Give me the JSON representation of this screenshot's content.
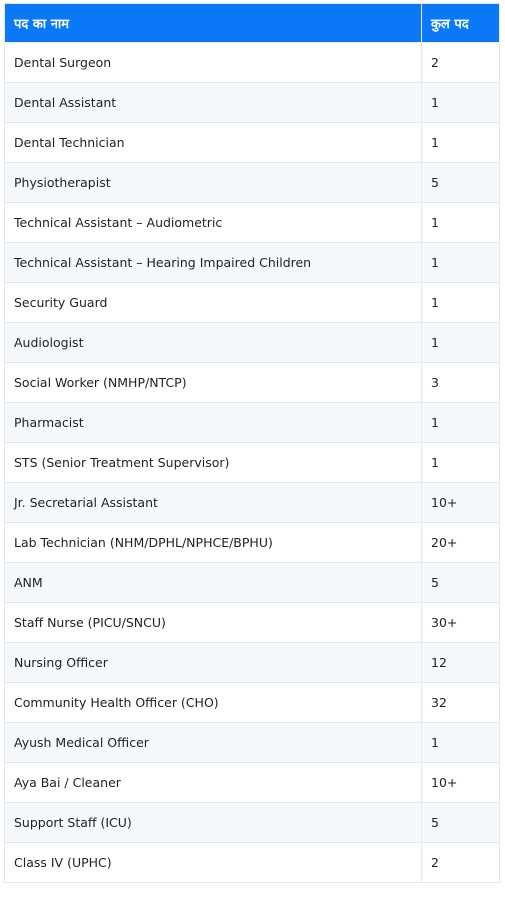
{
  "table": {
    "headers": [
      "पद का नाम",
      "कुल पद"
    ],
    "rows": [
      [
        "Dental Surgeon",
        "2"
      ],
      [
        "Dental Assistant",
        "1"
      ],
      [
        "Dental Technician",
        "1"
      ],
      [
        "Physiotherapist",
        "5"
      ],
      [
        "Technical Assistant – Audiometric",
        "1"
      ],
      [
        "Technical Assistant – Hearing Impaired Children",
        "1"
      ],
      [
        "Security Guard",
        "1"
      ],
      [
        "Audiologist",
        "1"
      ],
      [
        "Social Worker (NMHP/NTCP)",
        "3"
      ],
      [
        "Pharmacist",
        "1"
      ],
      [
        "STS (Senior Treatment Supervisor)",
        "1"
      ],
      [
        "Jr. Secretarial Assistant",
        "10+"
      ],
      [
        "Lab Technician (NHM/DPHL/NPHCE/BPHU)",
        "20+"
      ],
      [
        "ANM",
        "5"
      ],
      [
        "Staff Nurse (PICU/SNCU)",
        "30+"
      ],
      [
        "Nursing Officer",
        "12"
      ],
      [
        "Community Health Officer (CHO)",
        "32"
      ],
      [
        "Ayush Medical Officer",
        "1"
      ],
      [
        "Aya Bai / Cleaner",
        "10+"
      ],
      [
        "Support Staff (ICU)",
        "5"
      ],
      [
        "Class IV (UPHC)",
        "2"
      ]
    ]
  }
}
